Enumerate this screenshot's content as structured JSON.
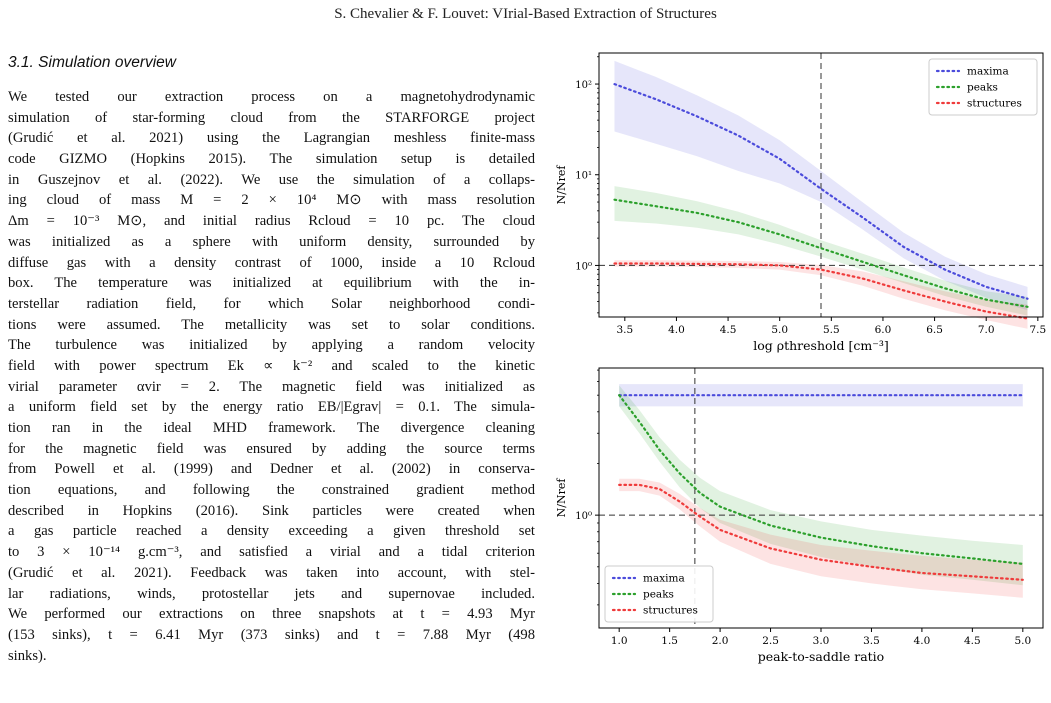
{
  "header": {
    "running_title": "S. Chevalier & F. Louvet: VIrial-Based Extraction of Structures"
  },
  "section": {
    "heading": "3.1. Simulation overview"
  },
  "paragraph": {
    "lines": [
      "We tested our extraction process on a magnetohydrodynamic",
      "simulation of star-forming cloud from the STARFORGE project",
      "(Grudić et al. 2021) using the Lagrangian meshless finite-mass",
      "code GIZMO (Hopkins 2015). The simulation setup is detailed",
      "in Guszejnov et al. (2022). We use the simulation of a collaps-",
      "ing cloud of mass M = 2 × 10⁴ M⊙ with mass resolution",
      "Δm = 10⁻³ M⊙, and initial radius Rcloud = 10 pc. The cloud",
      "was initialized as a sphere with uniform density, surrounded by",
      "diffuse gas with a density contrast of 1000, inside a 10 Rcloud",
      "box. The temperature was initialized at equilibrium with the in-",
      "terstellar radiation field, for which Solar neighborhood condi-",
      "tions were assumed. The metallicity was set to solar conditions.",
      "The turbulence was initialized by applying a random velocity",
      "field with power spectrum Ek ∝ k⁻² and scaled to the kinetic",
      "virial parameter αvir = 2. The magnetic field was initialized as",
      "a uniform field set by the energy ratio EB/|Egrav| = 0.1. The simula-",
      "tion ran in the ideal MHD framework. The divergence cleaning",
      "for the magnetic field was ensured by adding the source terms",
      "from Powell et al. (1999) and Dedner et al. (2002) in conserva-",
      "tion equations, and following the constrained gradient method",
      "described in Hopkins (2016). Sink particles were created when",
      "a gas particle reached a density exceeding a given threshold set",
      "to 3 × 10⁻¹⁴ g.cm⁻³, and satisfied a virial and a tidal criterion",
      "(Grudić et al. 2021). Feedback was taken into account, with stel-",
      "lar radiations, winds, protostellar jets and supernovae included.",
      "We performed our extractions on three snapshots at t = 4.93 Myr",
      "(153 sinks), t = 6.41 Myr (373 sinks) and t = 7.88 Myr (498",
      "sinks)."
    ]
  },
  "colors": {
    "maxima": "#4b4bdb",
    "peaks": "#2ca02c",
    "structures": "#ef3b3b"
  },
  "chart_data": [
    {
      "type": "line",
      "xlabel": "log ρthreshold [cm⁻³]",
      "ylabel": "N/Nref",
      "y_scale": "log",
      "xlim": [
        3.25,
        7.55
      ],
      "ylim": [
        0.27,
        220
      ],
      "x_ticks": [
        "3.5",
        "4.0",
        "4.5",
        "5.0",
        "5.5",
        "6.0",
        "6.5",
        "7.0",
        "7.5"
      ],
      "y_ticks": [
        "10⁰",
        "10¹",
        "10²"
      ],
      "legend": "top-right",
      "vline": 5.4,
      "hline": 1,
      "x": [
        3.4,
        3.8,
        4.2,
        4.6,
        5.0,
        5.4,
        5.8,
        6.2,
        6.6,
        7.0,
        7.4
      ],
      "series": [
        {
          "name": "maxima",
          "values": [
            100,
            68,
            44,
            27,
            15,
            7,
            3.4,
            1.6,
            0.9,
            0.58,
            0.43
          ],
          "lower": [
            30,
            22,
            16,
            11,
            8,
            5,
            2.5,
            1.2,
            0.68,
            0.44,
            0.32
          ],
          "upper": [
            180,
            120,
            75,
            45,
            24,
            11,
            5,
            2.3,
            1.25,
            0.8,
            0.58
          ]
        },
        {
          "name": "peaks",
          "values": [
            5.3,
            4.5,
            3.8,
            3.0,
            2.2,
            1.55,
            1.1,
            0.78,
            0.56,
            0.42,
            0.35
          ],
          "lower": [
            3.1,
            2.9,
            2.6,
            2.2,
            1.7,
            1.25,
            0.9,
            0.64,
            0.46,
            0.35,
            0.28
          ],
          "upper": [
            7.5,
            6.3,
            5.1,
            3.9,
            2.8,
            1.9,
            1.35,
            0.95,
            0.68,
            0.52,
            0.45
          ]
        },
        {
          "name": "structures",
          "values": [
            1.05,
            1.05,
            1.04,
            1.03,
            1.0,
            0.9,
            0.72,
            0.53,
            0.4,
            0.31,
            0.26
          ],
          "lower": [
            0.97,
            0.97,
            0.96,
            0.94,
            0.9,
            0.78,
            0.6,
            0.43,
            0.32,
            0.25,
            0.2
          ],
          "upper": [
            1.14,
            1.14,
            1.13,
            1.12,
            1.09,
            1.01,
            0.86,
            0.67,
            0.52,
            0.42,
            0.37
          ]
        }
      ]
    },
    {
      "type": "line",
      "xlabel": "peak-to-saddle ratio",
      "ylabel": "N/Nref",
      "y_scale": "log",
      "xlim": [
        0.8,
        5.2
      ],
      "ylim": [
        0.22,
        7.2
      ],
      "x_ticks": [
        "1.0",
        "1.5",
        "2.0",
        "2.5",
        "3.0",
        "3.5",
        "4.0",
        "4.5",
        "5.0"
      ],
      "y_ticks": [
        "10⁰"
      ],
      "legend": "bottom-left",
      "vline": 1.75,
      "hline": 1,
      "x": [
        1.0,
        1.2,
        1.4,
        1.6,
        1.8,
        2.0,
        2.5,
        3.0,
        3.5,
        4.0,
        4.5,
        5.0
      ],
      "series": [
        {
          "name": "maxima",
          "values": [
            5.0,
            5.0,
            5.0,
            5.0,
            5.0,
            5.0,
            5.0,
            5.0,
            5.0,
            5.0,
            5.0,
            5.0
          ],
          "lower": [
            4.3,
            4.3,
            4.3,
            4.3,
            4.3,
            4.3,
            4.3,
            4.3,
            4.3,
            4.3,
            4.3,
            4.3
          ],
          "upper": [
            5.8,
            5.8,
            5.8,
            5.8,
            5.8,
            5.8,
            5.8,
            5.8,
            5.8,
            5.8,
            5.8,
            5.8
          ]
        },
        {
          "name": "peaks",
          "values": [
            5.0,
            3.5,
            2.4,
            1.75,
            1.35,
            1.12,
            0.87,
            0.74,
            0.66,
            0.6,
            0.56,
            0.52
          ],
          "lower": [
            4.3,
            3.0,
            2.05,
            1.45,
            1.1,
            0.9,
            0.68,
            0.57,
            0.5,
            0.45,
            0.42,
            0.39
          ],
          "upper": [
            5.7,
            4.1,
            2.85,
            2.1,
            1.65,
            1.38,
            1.07,
            0.92,
            0.82,
            0.76,
            0.71,
            0.67
          ]
        },
        {
          "name": "structures",
          "values": [
            1.5,
            1.5,
            1.42,
            1.2,
            0.98,
            0.82,
            0.64,
            0.55,
            0.5,
            0.46,
            0.44,
            0.42
          ],
          "lower": [
            1.38,
            1.38,
            1.3,
            1.08,
            0.86,
            0.7,
            0.52,
            0.44,
            0.4,
            0.37,
            0.35,
            0.33
          ],
          "upper": [
            1.63,
            1.63,
            1.55,
            1.33,
            1.1,
            0.94,
            0.77,
            0.67,
            0.62,
            0.58,
            0.55,
            0.53
          ]
        }
      ]
    }
  ]
}
